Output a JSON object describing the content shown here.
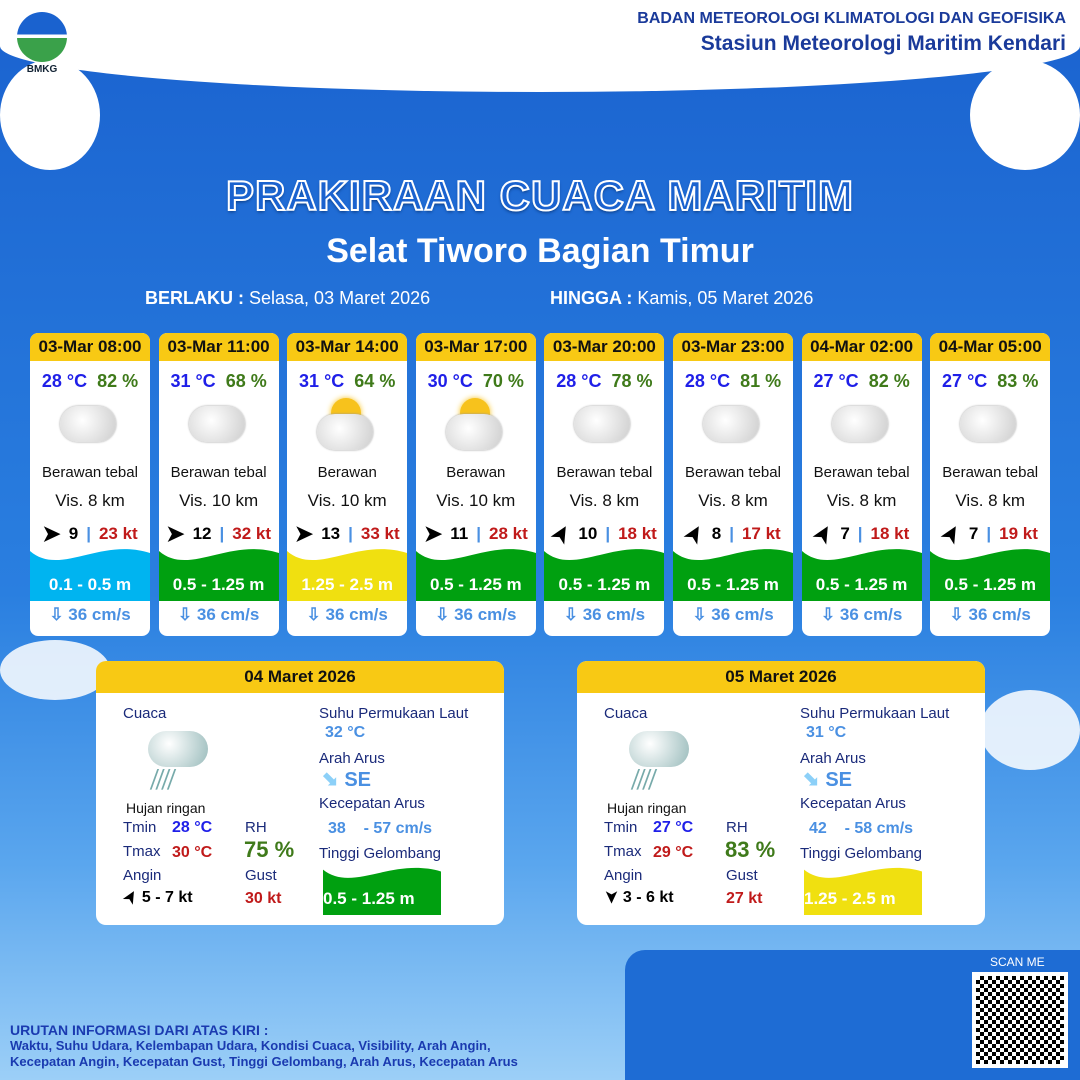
{
  "header": {
    "org": "BADAN METEOROLOGI KLIMATOLOGI DAN GEOFISIKA",
    "station": "Stasiun Meteorologi Maritim Kendari",
    "logo": "BMKG"
  },
  "title": "PRAKIRAAN CUACA MARITIM",
  "area": "Selat Tiworo Bagian Timur",
  "valid": {
    "from_label": "BERLAKU :",
    "from": "Selasa, 03 Maret 2026",
    "to_label": "HINGGA :",
    "to": "Kamis, 05 Maret 2026"
  },
  "forecasts": [
    {
      "time": "03-Mar 08:00",
      "temp": "28 °C",
      "rh": "82 %",
      "icon": "cloudy",
      "weather": "Berawan tebal",
      "vis": "Vis. 8 km",
      "wind_dir_deg": 90,
      "wind": "9",
      "gust": "23 kt",
      "wave": "0.1 - 0.5 m",
      "wave_color": "#00b4f0",
      "current": "36 cm/s"
    },
    {
      "time": "03-Mar 11:00",
      "temp": "31 °C",
      "rh": "68 %",
      "icon": "cloudy",
      "weather": "Berawan tebal",
      "vis": "Vis. 10 km",
      "wind_dir_deg": 90,
      "wind": "12",
      "gust": "32 kt",
      "wave": "0.5 - 1.25 m",
      "wave_color": "#00a010",
      "current": "36 cm/s"
    },
    {
      "time": "03-Mar 14:00",
      "temp": "31 °C",
      "rh": "64 %",
      "icon": "partly-cloudy",
      "weather": "Berawan",
      "vis": "Vis. 10 km",
      "wind_dir_deg": 90,
      "wind": "13",
      "gust": "33 kt",
      "wave": "1.25 - 2.5 m",
      "wave_color": "#f0e010",
      "current": "36 cm/s"
    },
    {
      "time": "03-Mar 17:00",
      "temp": "30 °C",
      "rh": "70 %",
      "icon": "partly-cloudy",
      "weather": "Berawan",
      "vis": "Vis.  10 km",
      "wind_dir_deg": 90,
      "wind": "11",
      "gust": "28 kt",
      "wave": "0.5 - 1.25 m",
      "wave_color": "#00a010",
      "current": "36 cm/s"
    },
    {
      "time": "03-Mar 20:00",
      "temp": "28 °C",
      "rh": "78 %",
      "icon": "cloudy",
      "weather": "Berawan tebal",
      "vis": "Vis. 8 km",
      "wind_dir_deg": 30,
      "wind": "10",
      "gust": "18 kt",
      "wave": "0.5 - 1.25 m",
      "wave_color": "#00a010",
      "current": "36 cm/s"
    },
    {
      "time": "03-Mar 23:00",
      "temp": "28 °C",
      "rh": "81 %",
      "icon": "cloudy",
      "weather": "Berawan tebal",
      "vis": "Vis.  8 km",
      "wind_dir_deg": 30,
      "wind": "8",
      "gust": "17 kt",
      "wave": "0.5 - 1.25 m",
      "wave_color": "#00a010",
      "current": "36 cm/s"
    },
    {
      "time": "04-Mar 02:00",
      "temp": "27 °C",
      "rh": "82 %",
      "icon": "cloudy",
      "weather": "Berawan tebal",
      "vis": "Vis.  8 km",
      "wind_dir_deg": 30,
      "wind": "7",
      "gust": "18 kt",
      "wave": "0.5 - 1.25 m",
      "wave_color": "#00a010",
      "current": "36 cm/s"
    },
    {
      "time": "04-Mar 05:00",
      "temp": "27 °C",
      "rh": "83 %",
      "icon": "cloudy",
      "weather": "Berawan tebal",
      "vis": "Vis.  8 km",
      "wind_dir_deg": 30,
      "wind": "7",
      "gust": "19 kt",
      "wave": "0.5 - 1.25 m",
      "wave_color": "#00a010",
      "current": "36 cm/s"
    }
  ],
  "labels": {
    "weather": "Cuaca",
    "sst": "Suhu Permukaan Laut",
    "cur_dir": "Arah Arus",
    "cur_speed": "Kecepatan Arus",
    "wave": "Tinggi Gelombang",
    "tmin": "Tmin",
    "tmax": "Tmax",
    "rh": "RH",
    "wind": "Angin",
    "gust": "Gust"
  },
  "days": [
    {
      "date": "04 Maret 2026",
      "weather": "Hujan ringan",
      "tmin": "28 °C",
      "tmax": "30 °C",
      "rh": "75 %",
      "wind": "5  - 7 kt",
      "wind_dir_deg": 30,
      "gust": "30 kt",
      "sst": "32 °C",
      "cur_dir": "SE",
      "cur_speed": "38    - 57 cm/s",
      "wave": "0.5 - 1.25 m",
      "wave_color": "#00a010"
    },
    {
      "date": "05 Maret 2026",
      "weather": "Hujan ringan",
      "tmin": "27 °C",
      "tmax": "29 °C",
      "rh": "83 %",
      "wind": "3  - 6 kt",
      "wind_dir_deg": 180,
      "gust": "27 kt",
      "sst": "31 °C",
      "cur_dir": "SE",
      "cur_speed": "42    - 58 cm/s",
      "wave": "1.25 - 2.5 m",
      "wave_color": "#f0e010"
    }
  ],
  "footer": {
    "heading": "URUTAN INFORMASI DARI ATAS KIRI :",
    "line1": "Waktu, Suhu Udara, Kelembapan Udara, Kondisi Cuaca, Visibility, Arah Angin,",
    "line2": "Kecepatan Angin, Kecepatan Gust, Tinggi Gelombang, Arah Arus, Kecepatan Arus",
    "scan": "SCAN ME"
  }
}
